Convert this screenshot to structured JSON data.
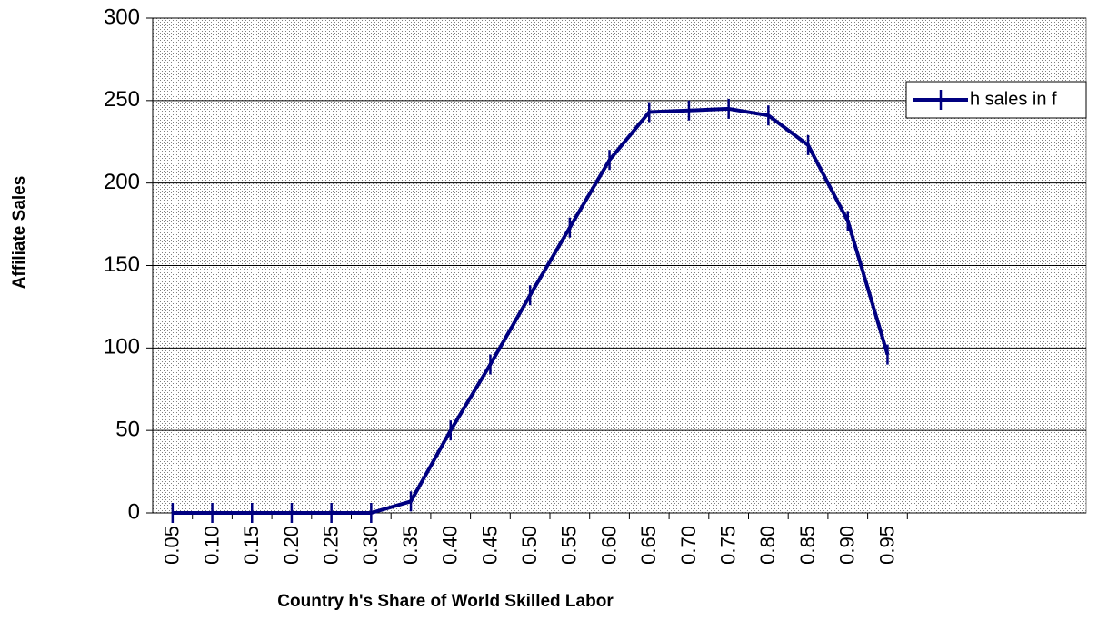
{
  "chart_data": {
    "type": "line",
    "x_label": "Country h's Share of World Skilled Labor",
    "y_label": "Affiliate Sales",
    "categories": [
      "0.05",
      "0.10",
      "0.15",
      "0.20",
      "0.25",
      "0.30",
      "0.35",
      "0.40",
      "0.45",
      "0.50",
      "0.55",
      "0.60",
      "0.65",
      "0.70",
      "0.75",
      "0.80",
      "0.85",
      "0.90",
      "0.95"
    ],
    "series": [
      {
        "name": "h sales in f",
        "color": "#000080",
        "values": [
          0,
          0,
          0,
          0,
          0,
          0,
          7,
          50,
          90,
          132,
          173,
          214,
          243,
          244,
          245,
          241,
          223,
          177,
          96
        ]
      }
    ],
    "ylim": [
      0,
      300
    ],
    "yticks": [
      0,
      50,
      100,
      150,
      200,
      250,
      300
    ],
    "grid": true,
    "legend": "upper right"
  }
}
